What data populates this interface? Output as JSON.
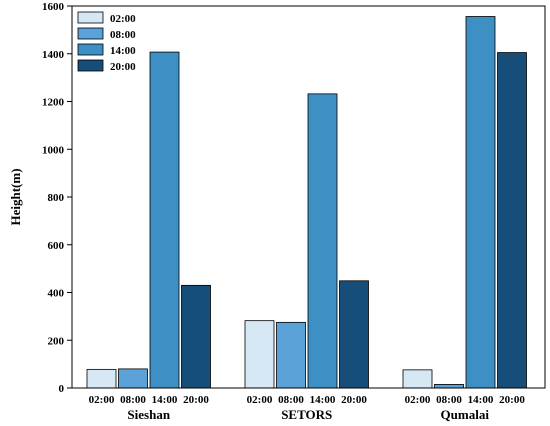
{
  "chart_data": {
    "type": "bar",
    "ylabel": "Height(m)",
    "ylim": [
      0,
      1600
    ],
    "yticks": [
      0,
      200,
      400,
      600,
      800,
      1000,
      1200,
      1400,
      1600
    ],
    "grid": false,
    "legend_position": "top-left",
    "categories": [
      "Sieshan",
      "SETORS",
      "Qumalai"
    ],
    "series": [
      {
        "name": "02:00",
        "color": "#d6e8f3",
        "values": [
          78,
          282,
          76
        ]
      },
      {
        "name": "08:00",
        "color": "#5aa2d8",
        "values": [
          80,
          275,
          15
        ]
      },
      {
        "name": "14:00",
        "color": "#3e8fc4",
        "values": [
          1407,
          1232,
          1556
        ]
      },
      {
        "name": "20:00",
        "color": "#174d79",
        "values": [
          430,
          449,
          1405
        ]
      }
    ]
  }
}
